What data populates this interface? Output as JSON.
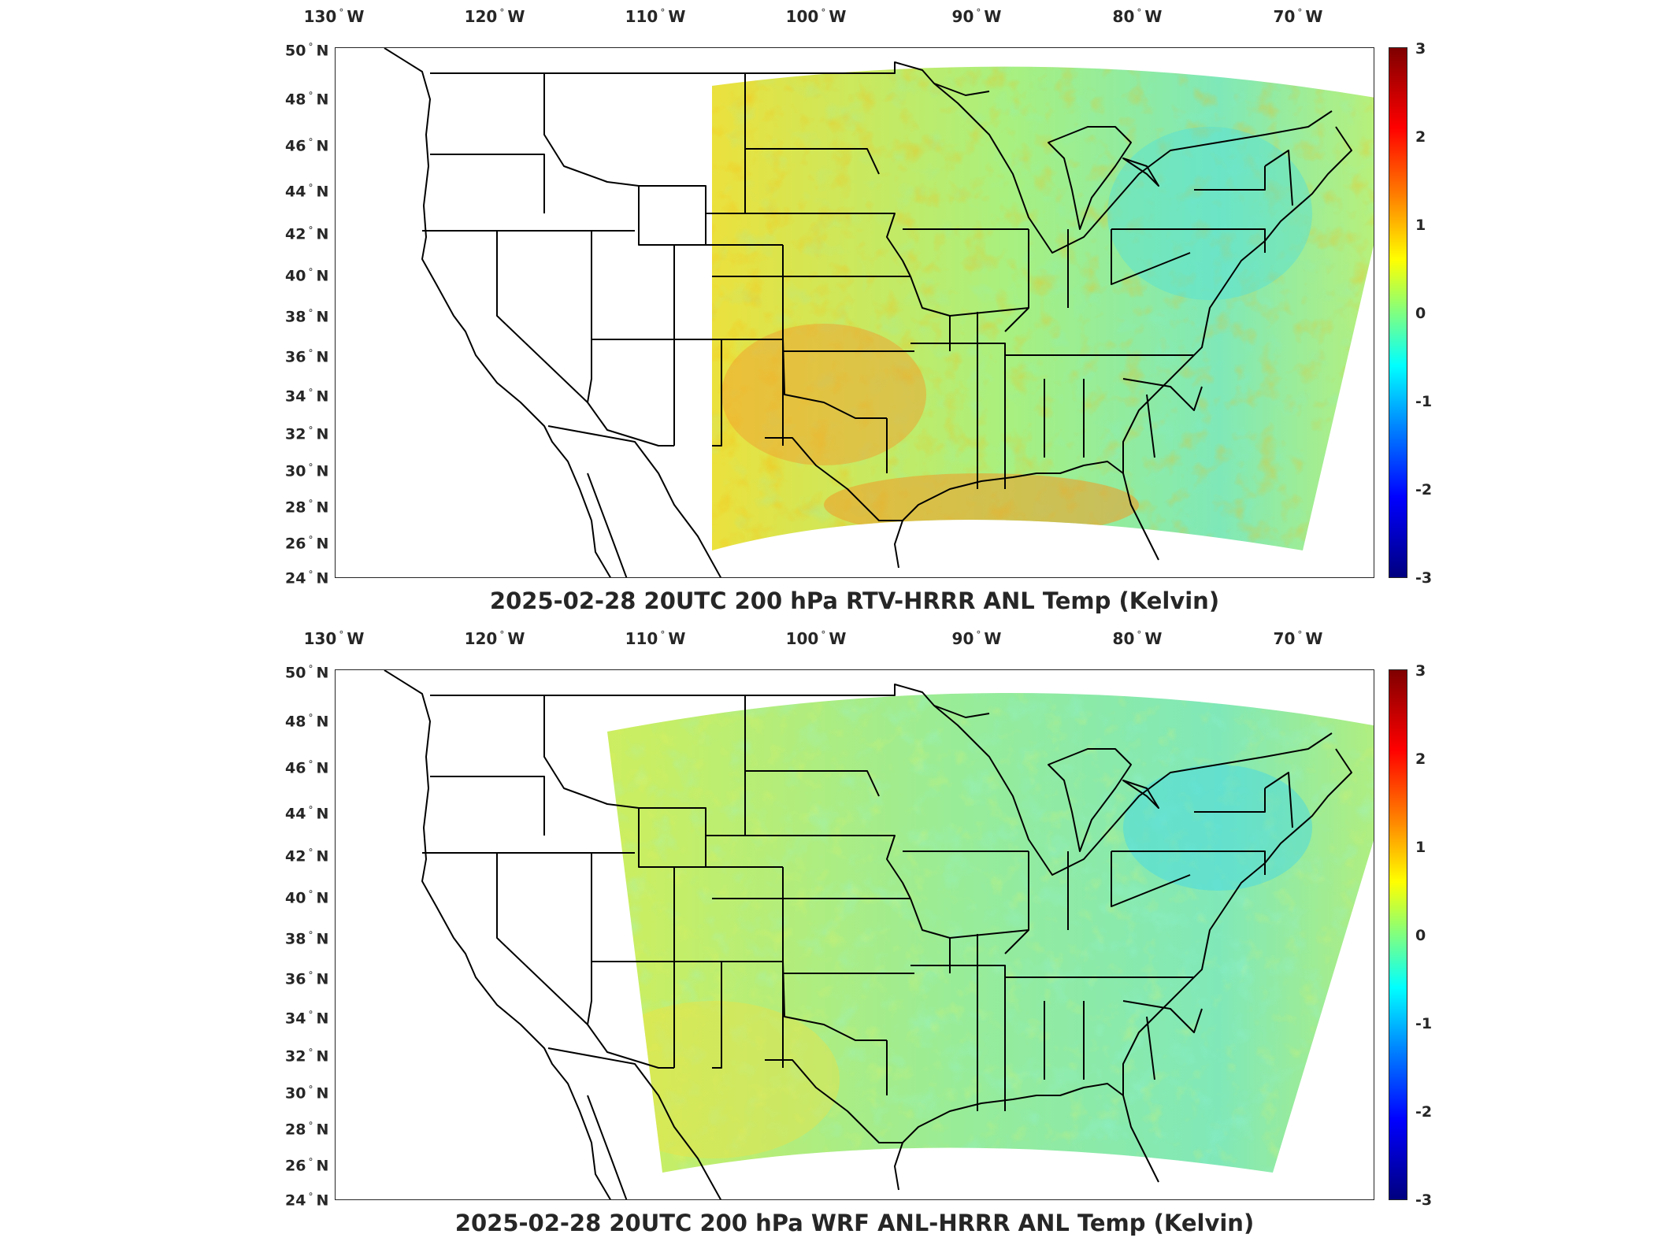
{
  "panels": [
    {
      "title": "2025-02-28 20UTC 200 hPa RTV-HRRR ANL Temp (Kelvin)",
      "colorbar": {
        "min": -3,
        "max": 3,
        "ticks": [
          "3",
          "2",
          "1",
          "0",
          "-1",
          "-2",
          "-3"
        ],
        "colormap": "jet",
        "colors": [
          "#00007f",
          "#0000ff",
          "#0080ff",
          "#00ffff",
          "#80ff80",
          "#ffff00",
          "#ff8000",
          "#ff0000",
          "#7f0000"
        ]
      },
      "lon_labels": [
        {
          "deg": "130",
          "hem": "W"
        },
        {
          "deg": "120",
          "hem": "W"
        },
        {
          "deg": "110",
          "hem": "W"
        },
        {
          "deg": "100",
          "hem": "W"
        },
        {
          "deg": "90",
          "hem": "W"
        },
        {
          "deg": "80",
          "hem": "W"
        },
        {
          "deg": "70",
          "hem": "W"
        }
      ],
      "lat_labels": [
        {
          "deg": "50",
          "hem": "N"
        },
        {
          "deg": "48",
          "hem": "N"
        },
        {
          "deg": "46",
          "hem": "N"
        },
        {
          "deg": "44",
          "hem": "N"
        },
        {
          "deg": "42",
          "hem": "N"
        },
        {
          "deg": "40",
          "hem": "N"
        },
        {
          "deg": "38",
          "hem": "N"
        },
        {
          "deg": "36",
          "hem": "N"
        },
        {
          "deg": "34",
          "hem": "N"
        },
        {
          "deg": "32",
          "hem": "N"
        },
        {
          "deg": "30",
          "hem": "N"
        },
        {
          "deg": "28",
          "hem": "N"
        },
        {
          "deg": "26",
          "hem": "N"
        },
        {
          "deg": "24",
          "hem": "N"
        }
      ]
    },
    {
      "title": "2025-02-28 20UTC 200 hPa WRF ANL-HRRR ANL Temp (Kelvin)",
      "colorbar": {
        "min": -3,
        "max": 3,
        "ticks": [
          "3",
          "2",
          "1",
          "0",
          "-1",
          "-2",
          "-3"
        ],
        "colormap": "jet",
        "colors": [
          "#00007f",
          "#0000ff",
          "#0080ff",
          "#00ffff",
          "#80ff80",
          "#ffff00",
          "#ff8000",
          "#ff0000",
          "#7f0000"
        ]
      },
      "lon_labels": [
        {
          "deg": "130",
          "hem": "W"
        },
        {
          "deg": "120",
          "hem": "W"
        },
        {
          "deg": "110",
          "hem": "W"
        },
        {
          "deg": "100",
          "hem": "W"
        },
        {
          "deg": "90",
          "hem": "W"
        },
        {
          "deg": "80",
          "hem": "W"
        },
        {
          "deg": "70",
          "hem": "W"
        }
      ],
      "lat_labels": [
        {
          "deg": "50",
          "hem": "N"
        },
        {
          "deg": "48",
          "hem": "N"
        },
        {
          "deg": "46",
          "hem": "N"
        },
        {
          "deg": "44",
          "hem": "N"
        },
        {
          "deg": "42",
          "hem": "N"
        },
        {
          "deg": "40",
          "hem": "N"
        },
        {
          "deg": "38",
          "hem": "N"
        },
        {
          "deg": "36",
          "hem": "N"
        },
        {
          "deg": "34",
          "hem": "N"
        },
        {
          "deg": "32",
          "hem": "N"
        },
        {
          "deg": "30",
          "hem": "N"
        },
        {
          "deg": "28",
          "hem": "N"
        },
        {
          "deg": "26",
          "hem": "N"
        },
        {
          "deg": "24",
          "hem": "N"
        }
      ]
    }
  ]
}
